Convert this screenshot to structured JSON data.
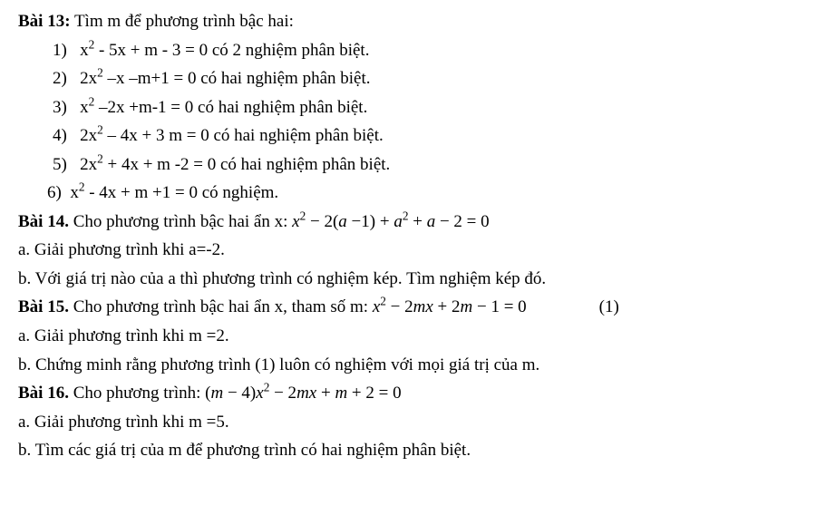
{
  "bai13": {
    "title": "Bài 13:",
    "intro": " Tìm m để phương trình bậc hai:",
    "items": [
      {
        "num": "1)",
        "eq": "x² - 5x + m - 3 = 0",
        "desc": " có 2 nghiệm phân biệt."
      },
      {
        "num": "2)",
        "eq": "2x² –x –m+1 = 0",
        "desc": " có hai nghiệm phân biệt."
      },
      {
        "num": "3)",
        "eq": "x² –2x +m-1 = 0",
        "desc": " có hai nghiệm phân biệt."
      },
      {
        "num": "4)",
        "eq": "2x² – 4x + 3 m = 0",
        "desc": " có hai nghiệm phân biệt."
      },
      {
        "num": "5)",
        "eq": "2x² + 4x + m -2 = 0",
        "desc": " có hai nghiệm phân biệt."
      },
      {
        "num": "6)",
        "eq": "x² - 4x + m +1 = 0",
        "desc": " có nghiệm."
      }
    ]
  },
  "bai14": {
    "title": "Bài 14.",
    "intro": " Cho phương trình bậc hai ẩn x:  ",
    "equation_parts": [
      "x",
      "2",
      " − 2(",
      "a",
      " −1) + ",
      "a",
      "2",
      " + ",
      "a",
      " − 2 = 0"
    ],
    "part_a": "a. Giải phương trình khi a=-2.",
    "part_b": "b. Với giá trị nào của a thì phương trình có nghiệm kép. Tìm nghiệm kép đó."
  },
  "bai15": {
    "title": "Bài 15.",
    "intro": " Cho phương trình bậc hai ẩn x, tham số m:  ",
    "equation_parts": [
      "x",
      "2",
      " − 2",
      "mx",
      " + 2",
      "m",
      " − 1 = 0"
    ],
    "eq_num": "(1)",
    "part_a": "a. Giải phương trình khi m =2.",
    "part_b": "b. Chứng minh rằng phương trình (1) luôn có nghiệm với mọi giá trị của m."
  },
  "bai16": {
    "title": "Bài 16.",
    "intro": " Cho phương trình: ",
    "equation_parts": [
      "(",
      "m",
      " − 4)",
      "x",
      "2",
      " − 2",
      "mx",
      " + ",
      "m",
      " + 2 = 0"
    ],
    "part_a": "a. Giải phương trình khi m =5.",
    "part_b": "b. Tìm các giá trị của m để phương trình có hai nghiệm phân biệt."
  }
}
